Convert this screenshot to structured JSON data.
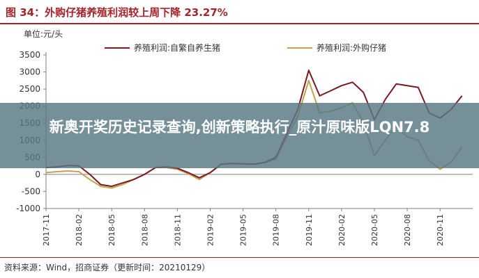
{
  "header": {
    "title": "图 34：外购仔猪养殖利润较上周下降 23.27%"
  },
  "unit_label": "单位:元/头",
  "banner": {
    "text": "新奥开奖历史记录查询,创新策略执行_原汁原味版LQN7.8"
  },
  "source": "资料来源：Wind，招商证券（更新时间：20210129）",
  "colors": {
    "title": "#a5242a",
    "series1": "#7b1820",
    "series2": "#c3a24c",
    "axis": "#7f7f7f",
    "banner": "#587884"
  },
  "chart_data": {
    "type": "line",
    "title": "",
    "xlabel": "",
    "ylabel": "单位:元/头",
    "ylim": [
      -1000,
      3500
    ],
    "yticks": [
      -1000,
      -500,
      0,
      500,
      1000,
      1500,
      2000,
      2500,
      3000,
      3500
    ],
    "xticks": [
      "2017-11",
      "2018-02",
      "2018-05",
      "2018-08",
      "2018-11",
      "2019-02",
      "2019-05",
      "2019-08",
      "2019-11",
      "2020-02",
      "2020-05",
      "2020-08",
      "2020-11"
    ],
    "grid": false,
    "legend_position": "top",
    "series": [
      {
        "name": "养殖利润:自繁自养生猪",
        "x": [
          "2017-11",
          "2017-12",
          "2018-01",
          "2018-02",
          "2018-03",
          "2018-04",
          "2018-05",
          "2018-06",
          "2018-07",
          "2018-08",
          "2018-09",
          "2018-10",
          "2018-11",
          "2018-12",
          "2019-01",
          "2019-02",
          "2019-03",
          "2019-04",
          "2019-05",
          "2019-06",
          "2019-07",
          "2019-08",
          "2019-09",
          "2019-10",
          "2019-11",
          "2019-12",
          "2020-01",
          "2020-02",
          "2020-03",
          "2020-04",
          "2020-05",
          "2020-06",
          "2020-07",
          "2020-08",
          "2020-09",
          "2020-10",
          "2020-11",
          "2020-12",
          "2021-01"
        ],
        "values": [
          200,
          220,
          260,
          250,
          0,
          -300,
          -350,
          -250,
          -150,
          0,
          200,
          220,
          180,
          50,
          -100,
          50,
          300,
          320,
          310,
          300,
          350,
          500,
          1200,
          1900,
          3050,
          2300,
          2450,
          2600,
          2700,
          2400,
          1600,
          2200,
          2650,
          2600,
          2550,
          1800,
          1650,
          1900,
          2300
        ]
      },
      {
        "name": "养殖利润:外购仔猪",
        "x": [
          "2017-11",
          "2017-12",
          "2018-01",
          "2018-02",
          "2018-03",
          "2018-04",
          "2018-05",
          "2018-06",
          "2018-07",
          "2018-08",
          "2018-09",
          "2018-10",
          "2018-11",
          "2018-12",
          "2019-01",
          "2019-02",
          "2019-03",
          "2019-04",
          "2019-05",
          "2019-06",
          "2019-07",
          "2019-08",
          "2019-09",
          "2019-10",
          "2019-11",
          "2019-12",
          "2020-01",
          "2020-02",
          "2020-03",
          "2020-04",
          "2020-05",
          "2020-06",
          "2020-07",
          "2020-08",
          "2020-09",
          "2020-10",
          "2020-11",
          "2020-12",
          "2021-01"
        ],
        "values": [
          50,
          80,
          100,
          80,
          -150,
          -350,
          -400,
          -300,
          -150,
          0,
          200,
          200,
          150,
          20,
          -150,
          50,
          300,
          320,
          310,
          300,
          350,
          450,
          1100,
          1700,
          2750,
          1800,
          1850,
          1950,
          2100,
          1500,
          550,
          1000,
          1400,
          1100,
          1000,
          400,
          150,
          350,
          800
        ]
      }
    ]
  }
}
